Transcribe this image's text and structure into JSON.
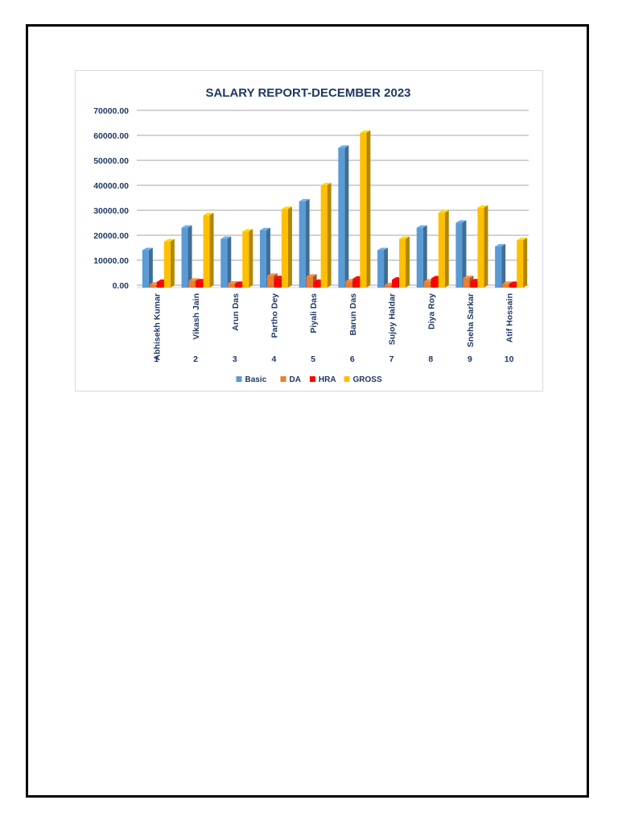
{
  "chart_data": {
    "type": "bar",
    "style": "3d-clustered-column",
    "title": "SALARY REPORT-DECEMBER 2023",
    "xlabel": "",
    "ylabel": "",
    "ylim": [
      0,
      70000
    ],
    "y_ticks": [
      "0.00",
      "10000.00",
      "20000.00",
      "30000.00",
      "40000.00",
      "50000.00",
      "60000.00",
      "70000.00"
    ],
    "y_tick_values": [
      0,
      10000,
      20000,
      30000,
      40000,
      50000,
      60000,
      70000
    ],
    "grid": true,
    "legend_position": "bottom",
    "categories": [
      "Abhisekh Kumar",
      "Vikash Jain",
      "Arun Das",
      "Partho Dey",
      "Piyali Das",
      "Barun Das",
      "Sujoy Haldar",
      "Diya Roy",
      "Sneha Sarkar",
      "Atif Hossain"
    ],
    "category_numbers": [
      "1",
      "2",
      "3",
      "4",
      "5",
      "6",
      "7",
      "8",
      "9",
      "10"
    ],
    "series": [
      {
        "name": "Basic",
        "color": "#5b9bd5",
        "values": [
          15000,
          24000,
          19500,
          23000,
          34500,
          56000,
          15000,
          24000,
          26000,
          16500
        ]
      },
      {
        "name": "DA",
        "color": "#ed7d31",
        "values": [
          1200,
          2800,
          1600,
          4700,
          4400,
          2500,
          1000,
          2400,
          3800,
          1500
        ]
      },
      {
        "name": "HRA",
        "color": "#ff0000",
        "values": [
          2300,
          2500,
          1500,
          3800,
          2300,
          3600,
          3200,
          3700,
          2500,
          1500
        ]
      },
      {
        "name": "GROSS",
        "color": "#ffc000",
        "values": [
          18500,
          29000,
          22500,
          31500,
          41000,
          62000,
          19500,
          30000,
          32000,
          19000
        ]
      }
    ],
    "axis_text_color": "#1f3864",
    "grid_color": "#a6a6a6"
  }
}
